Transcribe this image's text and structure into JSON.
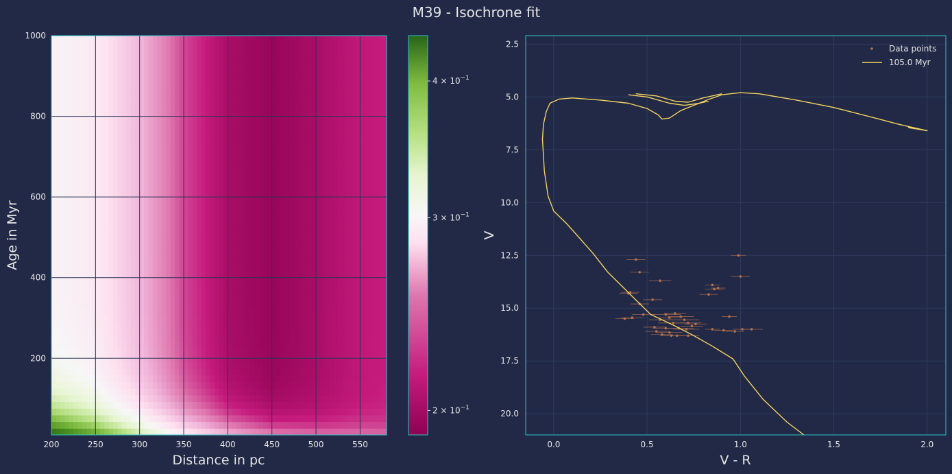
{
  "title": "M39 - Isochrone fit",
  "colors": {
    "background": "#212946",
    "axes_edge": "#2ec4c4",
    "grid": "#2f3b5e",
    "heatmap_grid": "#2a3356",
    "isochrone": "#f5d361",
    "data_points": "#b5714e"
  },
  "chart_data": [
    {
      "type": "heatmap",
      "xlabel": "Distance in pc",
      "ylabel": "Age in Myr",
      "xlim": [
        200,
        580
      ],
      "ylim": [
        10,
        1000
      ],
      "xticks": [
        200,
        250,
        300,
        350,
        400,
        450,
        500,
        550
      ],
      "yticks": [
        200,
        400,
        600,
        800,
        1000
      ],
      "xtick_labels": [
        "200",
        "250",
        "300",
        "350",
        "400",
        "450",
        "500",
        "550"
      ],
      "ytick_labels": [
        "200",
        "400",
        "600",
        "800",
        "1000"
      ],
      "grid": true,
      "colormap": "PiYG",
      "description_values": "chi-square like metric; minimum near 420-480 pc for all ages, maximum at 200 pc and small ages",
      "profile_distance": [
        200,
        250,
        300,
        350,
        400,
        450,
        500,
        550,
        580
      ],
      "profile_value": [
        0.285,
        0.275,
        0.245,
        0.215,
        0.198,
        0.193,
        0.198,
        0.205,
        0.207
      ],
      "low_age_boost": 0.16,
      "colorbar": {
        "scale": "log",
        "range": [
          0.19,
          0.44
        ],
        "ticks": [
          0.2,
          0.3,
          0.4
        ],
        "tick_labels": [
          {
            "base": "2 × 10",
            "exp": "−1"
          },
          {
            "base": "3 × 10",
            "exp": "−1"
          },
          {
            "base": "4 × 10",
            "exp": "−1"
          }
        ]
      }
    },
    {
      "type": "scatter",
      "xlabel": "V - R",
      "ylabel": "V",
      "xlim": [
        -0.15,
        2.1
      ],
      "ylim": [
        21,
        2.1
      ],
      "y_inverted": true,
      "xticks": [
        0.0,
        0.5,
        1.0,
        1.5,
        2.0
      ],
      "yticks": [
        2.5,
        5.0,
        7.5,
        10.0,
        12.5,
        15.0,
        17.5,
        20.0
      ],
      "xtick_labels": [
        "0.0",
        "0.5",
        "1.0",
        "1.5",
        "2.0"
      ],
      "ytick_labels": [
        "2.5",
        "5.0",
        "7.5",
        "10.0",
        "12.5",
        "15.0",
        "17.5",
        "20.0"
      ],
      "grid": true,
      "legend_position": "top-right",
      "series": [
        {
          "name": "Data points",
          "kind": "scatter_errorbar",
          "points": [
            [
              0.44,
              12.7,
              0.05
            ],
            [
              0.99,
              12.5,
              0.04
            ],
            [
              0.46,
              13.3,
              0.05
            ],
            [
              1.0,
              13.5,
              0.05
            ],
            [
              0.57,
              13.7,
              0.06
            ],
            [
              0.85,
              13.9,
              0.04
            ],
            [
              0.86,
              14.1,
              0.05
            ],
            [
              0.88,
              14.05,
              0.04
            ],
            [
              0.41,
              14.25,
              0.05
            ],
            [
              0.4,
              14.3,
              0.05
            ],
            [
              0.83,
              14.35,
              0.05
            ],
            [
              0.53,
              14.6,
              0.05
            ],
            [
              0.46,
              14.8,
              0.05
            ],
            [
              0.48,
              15.3,
              0.06
            ],
            [
              0.6,
              15.3,
              0.08
            ],
            [
              0.65,
              15.25,
              0.06
            ],
            [
              0.62,
              15.45,
              0.07
            ],
            [
              0.68,
              15.4,
              0.07
            ],
            [
              0.7,
              15.55,
              0.08
            ],
            [
              0.57,
              15.55,
              0.06
            ],
            [
              0.42,
              15.45,
              0.06
            ],
            [
              0.38,
              15.5,
              0.05
            ],
            [
              0.64,
              15.7,
              0.08
            ],
            [
              0.72,
              15.7,
              0.07
            ],
            [
              0.76,
              15.75,
              0.06
            ],
            [
              0.74,
              15.85,
              0.06
            ],
            [
              0.54,
              15.9,
              0.06
            ],
            [
              0.6,
              15.95,
              0.07
            ],
            [
              0.67,
              15.95,
              0.08
            ],
            [
              0.71,
              16.0,
              0.07
            ],
            [
              0.55,
              16.1,
              0.06
            ],
            [
              0.62,
              16.15,
              0.07
            ],
            [
              0.58,
              16.25,
              0.06
            ],
            [
              0.66,
              16.3,
              0.07
            ],
            [
              0.72,
              16.3,
              0.06
            ],
            [
              0.94,
              15.4,
              0.04
            ],
            [
              0.85,
              16.0,
              0.04
            ],
            [
              0.91,
              16.05,
              0.05
            ],
            [
              0.97,
              16.1,
              0.05
            ],
            [
              1.01,
              16.0,
              0.05
            ],
            [
              1.06,
              16.0,
              0.06
            ],
            [
              0.63,
              16.3,
              0.06
            ]
          ]
        },
        {
          "name": "105.0 Myr",
          "kind": "line",
          "points": [
            [
              1.34,
              21.0
            ],
            [
              1.25,
              20.4
            ],
            [
              1.12,
              19.3
            ],
            [
              1.02,
              18.2
            ],
            [
              0.96,
              17.4
            ],
            [
              0.85,
              16.8
            ],
            [
              0.75,
              16.3
            ],
            [
              0.64,
              15.8
            ],
            [
              0.52,
              15.3
            ],
            [
              0.45,
              14.7
            ],
            [
              0.37,
              14.0
            ],
            [
              0.29,
              13.3
            ],
            [
              0.21,
              12.4
            ],
            [
              0.13,
              11.6
            ],
            [
              0.07,
              11.0
            ],
            [
              0.0,
              10.4
            ],
            [
              -0.03,
              9.7
            ],
            [
              -0.05,
              8.5
            ],
            [
              -0.06,
              7.0
            ],
            [
              -0.055,
              6.3
            ],
            [
              -0.04,
              5.7
            ],
            [
              -0.02,
              5.3
            ],
            [
              0.03,
              5.1
            ],
            [
              0.1,
              5.05
            ],
            [
              0.25,
              5.15
            ],
            [
              0.4,
              5.3
            ],
            [
              0.5,
              5.55
            ],
            [
              0.56,
              5.85
            ],
            [
              0.58,
              6.05
            ],
            [
              0.62,
              6.0
            ],
            [
              0.68,
              5.65
            ],
            [
              0.75,
              5.4
            ],
            [
              0.82,
              5.15
            ],
            [
              0.9,
              4.9
            ],
            [
              1.0,
              4.8
            ],
            [
              1.1,
              4.85
            ],
            [
              1.3,
              5.15
            ],
            [
              1.5,
              5.5
            ],
            [
              1.7,
              5.95
            ],
            [
              1.85,
              6.3
            ],
            [
              2.0,
              6.6
            ],
            [
              1.9,
              6.45
            ],
            [
              2.0,
              6.6
            ]
          ],
          "extra_branches": [
            [
              [
                0.4,
                4.9
              ],
              [
                0.5,
                5.0
              ],
              [
                0.62,
                5.3
              ],
              [
                0.7,
                5.4
              ],
              [
                0.78,
                5.3
              ],
              [
                0.83,
                5.2
              ]
            ],
            [
              [
                0.44,
                4.85
              ],
              [
                0.55,
                4.95
              ],
              [
                0.65,
                5.2
              ],
              [
                0.72,
                5.25
              ],
              [
                0.8,
                5.05
              ],
              [
                0.9,
                4.85
              ]
            ]
          ]
        }
      ]
    }
  ]
}
